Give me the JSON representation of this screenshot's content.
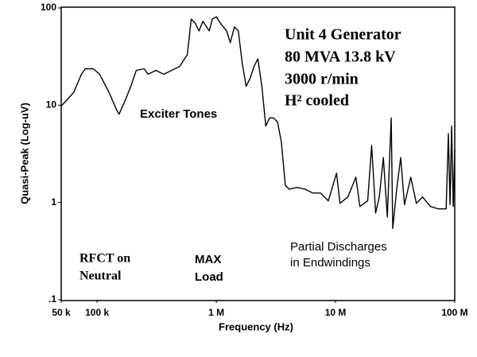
{
  "chart_data": {
    "type": "line",
    "xlabel": "Frequency (Hz)",
    "ylabel": "Quasi-Peak (Log-uV)",
    "xscale": "log",
    "yscale": "log",
    "xlim": [
      50000,
      100000000
    ],
    "ylim": [
      0.1,
      100
    ],
    "xticks": [
      {
        "value": 50000,
        "label": "50 k"
      },
      {
        "value": 100000,
        "label": "100 k"
      },
      {
        "value": 1000000,
        "label": "1 M"
      },
      {
        "value": 10000000,
        "label": "10 M"
      },
      {
        "value": 100000000,
        "label": "100 M"
      }
    ],
    "yticks": [
      {
        "value": 100,
        "label": "100"
      },
      {
        "value": 10,
        "label": "10"
      },
      {
        "value": 1,
        "label": "1"
      },
      {
        "value": 0.1,
        "label": ".1"
      }
    ],
    "annotations": [
      "Exciter Tones",
      "Unit 4 Generator",
      "80 MVA 13.8 kV",
      "3000 r/min",
      "H² cooled",
      "RFCT on",
      "Neutral",
      "MAX",
      "Load",
      "Partial Discharges",
      "in Endwindings"
    ],
    "series": [
      {
        "color": "#000000",
        "x": [
          50000,
          63500,
          73800,
          79600,
          92700,
          105000,
          126000,
          146000,
          153000,
          170000,
          192000,
          213000,
          248000,
          268000,
          311000,
          362000,
          422000,
          491000,
          571000,
          616000,
          664000,
          716000,
          773000,
          873000,
          926000,
          1000000,
          1080000,
          1220000,
          1310000,
          1420000,
          1530000,
          1650000,
          1780000,
          1920000,
          2070000,
          2230000,
          2410000,
          2600000,
          2800000,
          3020000,
          3260000,
          3510000,
          3790000,
          4090000,
          4760000,
          5540000,
          6440000,
          7500000,
          8700000,
          10200000,
          10900000,
          12700000,
          14800000,
          16000000,
          18600000,
          20100000,
          21700000,
          23300000,
          25200000,
          27200000,
          29300000,
          30200000,
          32600000,
          35200000,
          37900000,
          42800000,
          47600000,
          53700000,
          62500000,
          72800000,
          84700000,
          88500000,
          91400000,
          94200000,
          97100000,
          100000000
        ],
        "values": [
          9.8,
          13.5,
          20.8,
          23.7,
          23.7,
          20.8,
          13.5,
          8.9,
          8.1,
          10.8,
          15.7,
          22.8,
          23.7,
          20.8,
          22.8,
          20.8,
          22.8,
          25,
          33,
          77,
          70,
          58,
          73,
          58,
          77,
          81,
          70,
          58,
          44,
          64,
          58,
          27,
          15.7,
          18.9,
          25,
          30,
          15.7,
          6.1,
          7.4,
          7.4,
          6.7,
          4.2,
          1.5,
          1.37,
          1.43,
          1.37,
          1.25,
          1.25,
          1.04,
          2.0,
          0.98,
          1.14,
          1.82,
          0.91,
          1.04,
          3.85,
          0.78,
          1.14,
          2.9,
          0.71,
          7.4,
          0.54,
          1.37,
          2.9,
          0.95,
          1.82,
          0.98,
          1.14,
          0.91,
          0.86,
          0.86,
          5.1,
          0.95,
          6.1,
          0.91,
          3.5
        ]
      }
    ]
  }
}
